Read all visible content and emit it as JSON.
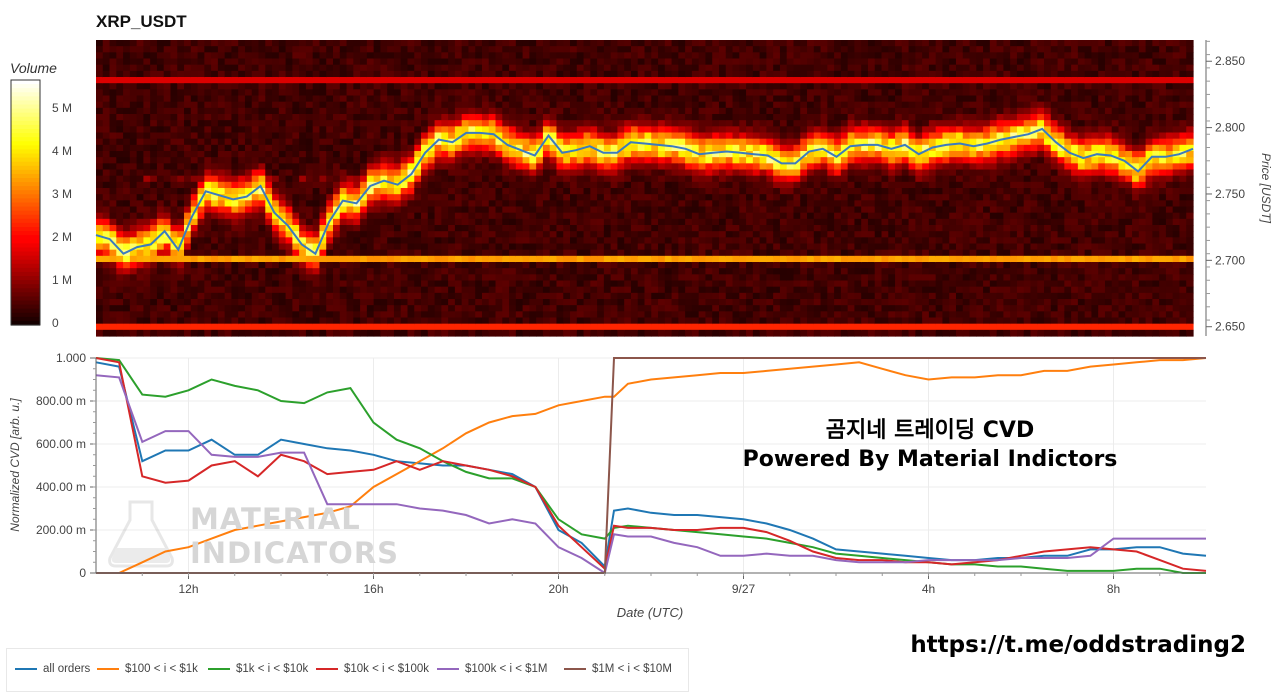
{
  "chart_title": "XRP_USDT",
  "colorbar": {
    "title": "Volume",
    "ticks": [
      "0",
      "1 M",
      "2 M",
      "3 M",
      "4 M",
      "5 M"
    ],
    "tick_values": [
      0,
      1,
      2,
      3,
      4,
      5
    ],
    "max": 5.7
  },
  "colors": {
    "all orders": "#1f77b4",
    "$100 < i < $1k": "#ff7f0e",
    "$1k < i < $10k": "#2ca02c",
    "$10k < i < $100k": "#d62728",
    "$100k < i < $1M": "#9467bd",
    "$1M < i < $10M": "#8c564b"
  },
  "overlay": {
    "line1": "곰지네 트레이딩 CVD",
    "line2": "Powered By Material Indictors"
  },
  "watermark": {
    "line1": "MATERIAL",
    "line2": "INDICATORS"
  },
  "footer_url": "https://t.me/oddstrading2",
  "chart_data": [
    {
      "type": "heatmap",
      "title": "XRP_USDT",
      "ylabel": "Price [USDT]",
      "y_ticks": [
        "2.650",
        "2.700",
        "2.750",
        "2.800",
        "2.850"
      ],
      "y_tick_values": [
        2.65,
        2.7,
        2.75,
        2.8,
        2.85
      ],
      "ylim": [
        2.643,
        2.866
      ],
      "xlim": [
        10.0,
        34.0
      ],
      "colorscale": "hot",
      "price_line": {
        "color": "#3b7bbf",
        "x": [
          10.0,
          10.3,
          10.6,
          10.9,
          11.2,
          11.5,
          11.8,
          12.1,
          12.4,
          12.7,
          13.0,
          13.3,
          13.6,
          13.9,
          14.2,
          14.5,
          14.8,
          15.1,
          15.4,
          15.7,
          16.0,
          16.3,
          16.6,
          16.9,
          17.2,
          17.5,
          17.8,
          18.1,
          18.4,
          18.7,
          19.0,
          19.3,
          19.6,
          19.9,
          20.2,
          20.5,
          20.8,
          21.1,
          21.4,
          21.7,
          22.0,
          22.3,
          22.6,
          22.9,
          23.2,
          23.5,
          23.8,
          24.1,
          24.4,
          24.7,
          25.0,
          25.3,
          25.6,
          25.9,
          26.2,
          26.5,
          26.8,
          27.1,
          27.4,
          27.7,
          28.0,
          28.3,
          28.6,
          28.9,
          29.2,
          29.5,
          29.8,
          30.1,
          30.4,
          30.7,
          31.0,
          31.3,
          31.6,
          31.9,
          32.2,
          32.5,
          32.8,
          33.1,
          33.4,
          33.7,
          34.0
        ],
        "y": [
          2.719,
          2.716,
          2.705,
          2.71,
          2.712,
          2.722,
          2.708,
          2.733,
          2.752,
          2.749,
          2.746,
          2.748,
          2.756,
          2.736,
          2.726,
          2.712,
          2.705,
          2.729,
          2.745,
          2.743,
          2.756,
          2.76,
          2.757,
          2.765,
          2.781,
          2.791,
          2.789,
          2.796,
          2.796,
          2.795,
          2.787,
          2.783,
          2.779,
          2.794,
          2.781,
          2.783,
          2.786,
          2.781,
          2.781,
          2.789,
          2.788,
          2.787,
          2.786,
          2.784,
          2.78,
          2.781,
          2.782,
          2.781,
          2.78,
          2.779,
          2.773,
          2.773,
          2.782,
          2.784,
          2.778,
          2.786,
          2.787,
          2.787,
          2.784,
          2.787,
          2.78,
          2.785,
          2.787,
          2.788,
          2.786,
          2.788,
          2.791,
          2.793,
          2.795,
          2.799,
          2.789,
          2.781,
          2.777,
          2.78,
          2.779,
          2.775,
          2.767,
          2.778,
          2.778,
          2.78,
          2.784
        ]
      }
    },
    {
      "type": "line",
      "xlabel": "Date (UTC)",
      "ylabel": "Normalized CVD [arb. u.]",
      "xlim": [
        10.0,
        34.0
      ],
      "ylim": [
        0,
        1.0
      ],
      "x_ticks": [
        "12h",
        "16h",
        "20h",
        "9/27",
        "4h",
        "8h"
      ],
      "x_tick_values": [
        12,
        16,
        20,
        24,
        28,
        32
      ],
      "y_ticks": [
        "0",
        "200.00 m",
        "400.00 m",
        "600.00 m",
        "800.00 m",
        "1.000"
      ],
      "y_tick_values": [
        0,
        0.2,
        0.4,
        0.6,
        0.8,
        1.0
      ],
      "grid": true,
      "legend_position": "bottom-left",
      "x": [
        10.0,
        10.5,
        11.0,
        11.5,
        12.0,
        12.5,
        13.0,
        13.5,
        14.0,
        14.5,
        15.0,
        15.5,
        16.0,
        16.5,
        17.0,
        17.5,
        18.0,
        18.5,
        19.0,
        19.5,
        20.0,
        20.5,
        21.0,
        21.2,
        21.5,
        22.0,
        22.5,
        23.0,
        23.5,
        24.0,
        24.5,
        25.0,
        25.5,
        26.0,
        26.5,
        27.0,
        27.5,
        28.0,
        28.5,
        29.0,
        29.5,
        30.0,
        30.5,
        31.0,
        31.5,
        32.0,
        32.5,
        33.0,
        33.5,
        34.0
      ],
      "series": [
        {
          "name": "all orders",
          "values": [
            0.98,
            0.96,
            0.52,
            0.57,
            0.57,
            0.62,
            0.55,
            0.55,
            0.62,
            0.6,
            0.58,
            0.57,
            0.55,
            0.52,
            0.51,
            0.5,
            0.5,
            0.48,
            0.46,
            0.4,
            0.2,
            0.14,
            0.03,
            0.29,
            0.3,
            0.28,
            0.27,
            0.27,
            0.26,
            0.25,
            0.23,
            0.2,
            0.16,
            0.11,
            0.1,
            0.09,
            0.08,
            0.07,
            0.06,
            0.06,
            0.07,
            0.07,
            0.08,
            0.08,
            0.11,
            0.11,
            0.12,
            0.12,
            0.09,
            0.08
          ]
        },
        {
          "name": "$100 < i < $1k",
          "values": [
            0.0,
            0.0,
            0.05,
            0.1,
            0.12,
            0.16,
            0.2,
            0.22,
            0.24,
            0.26,
            0.28,
            0.31,
            0.4,
            0.46,
            0.52,
            0.58,
            0.65,
            0.7,
            0.73,
            0.74,
            0.78,
            0.8,
            0.82,
            0.82,
            0.88,
            0.9,
            0.91,
            0.92,
            0.93,
            0.93,
            0.94,
            0.95,
            0.96,
            0.97,
            0.98,
            0.95,
            0.92,
            0.9,
            0.91,
            0.91,
            0.92,
            0.92,
            0.94,
            0.94,
            0.96,
            0.97,
            0.98,
            0.99,
            0.99,
            1.0
          ]
        },
        {
          "name": "$1k < i < $10k",
          "values": [
            1.0,
            0.99,
            0.83,
            0.82,
            0.85,
            0.9,
            0.87,
            0.85,
            0.8,
            0.79,
            0.84,
            0.86,
            0.7,
            0.62,
            0.58,
            0.52,
            0.47,
            0.44,
            0.44,
            0.4,
            0.25,
            0.18,
            0.16,
            0.21,
            0.22,
            0.21,
            0.2,
            0.19,
            0.18,
            0.17,
            0.16,
            0.14,
            0.12,
            0.09,
            0.08,
            0.07,
            0.06,
            0.05,
            0.04,
            0.04,
            0.03,
            0.03,
            0.02,
            0.01,
            0.01,
            0.01,
            0.02,
            0.02,
            0.0,
            0.0
          ]
        },
        {
          "name": "$10k < i < $100k",
          "values": [
            1.0,
            0.98,
            0.45,
            0.42,
            0.43,
            0.5,
            0.52,
            0.45,
            0.55,
            0.52,
            0.46,
            0.47,
            0.48,
            0.52,
            0.48,
            0.52,
            0.5,
            0.48,
            0.45,
            0.4,
            0.22,
            0.12,
            0.02,
            0.22,
            0.21,
            0.21,
            0.2,
            0.2,
            0.21,
            0.21,
            0.19,
            0.15,
            0.1,
            0.07,
            0.06,
            0.06,
            0.05,
            0.05,
            0.04,
            0.05,
            0.06,
            0.08,
            0.1,
            0.11,
            0.12,
            0.11,
            0.1,
            0.06,
            0.02,
            0.01
          ]
        },
        {
          "name": "$100k < i < $1M",
          "values": [
            0.92,
            0.91,
            0.61,
            0.66,
            0.66,
            0.55,
            0.54,
            0.54,
            0.56,
            0.56,
            0.32,
            0.32,
            0.32,
            0.32,
            0.3,
            0.29,
            0.27,
            0.23,
            0.25,
            0.23,
            0.12,
            0.07,
            0.0,
            0.18,
            0.17,
            0.17,
            0.14,
            0.12,
            0.08,
            0.08,
            0.09,
            0.08,
            0.08,
            0.06,
            0.05,
            0.05,
            0.05,
            0.06,
            0.06,
            0.06,
            0.06,
            0.07,
            0.07,
            0.07,
            0.08,
            0.16,
            0.16,
            0.16,
            0.16,
            0.16
          ]
        },
        {
          "name": "$1M < i < $10M",
          "values": [
            0,
            0,
            0,
            0,
            0,
            0,
            0,
            0,
            0,
            0,
            0,
            0,
            0,
            0,
            0,
            0,
            0,
            0,
            0,
            0,
            0,
            0,
            0,
            1.0,
            1.0,
            1.0,
            1.0,
            1.0,
            1.0,
            1.0,
            1.0,
            1.0,
            1.0,
            1.0,
            1.0,
            1.0,
            1.0,
            1.0,
            1.0,
            1.0,
            1.0,
            1.0,
            1.0,
            1.0,
            1.0,
            1.0,
            1.0,
            1.0,
            1.0,
            1.0
          ]
        }
      ]
    }
  ]
}
